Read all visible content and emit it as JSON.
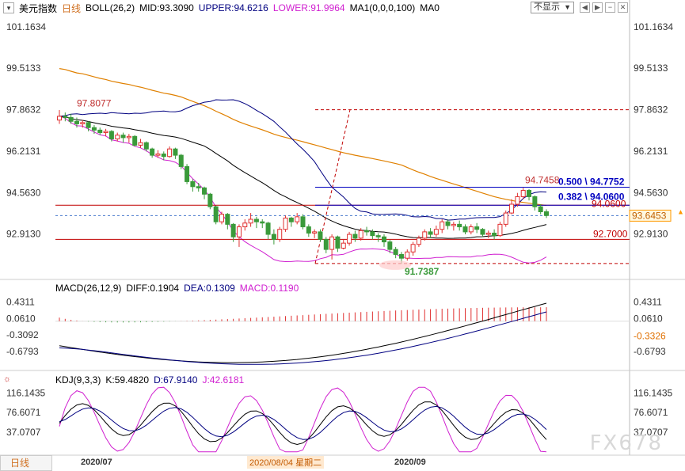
{
  "header": {
    "title": "美元指数",
    "period": "日线",
    "boll_label": "BOLL(26,2)",
    "mid_label": "MID:93.3090",
    "upper_label": "UPPER:94.6216",
    "lower_label": "LOWER:91.9964",
    "ma_label": "MA1(0,0,0,100)",
    "ma0_label": "MA0",
    "display_select": "不显示"
  },
  "macd_header": {
    "name": "MACD(26,12,9)",
    "diff": "DIFF:0.1904",
    "dea": "DEA:0.1309",
    "macd": "MACD:0.1190"
  },
  "kdj_header": {
    "name": "KDJ(9,3,3)",
    "k": "K:59.4820",
    "d": "D:67.9140",
    "j": "J:42.6181"
  },
  "footer": {
    "tab": "日线",
    "dates": [
      "2020/07",
      "2020/08/04 星期二",
      "2020/09"
    ]
  },
  "watermark": "FX678",
  "colors": {
    "up": "#e03030",
    "down": "#3a9a3a",
    "mid": "#000000",
    "upper": "#000080",
    "lower": "#d020d0",
    "ma": "#e08000",
    "fib": "#0000c0",
    "hline": "#c00000",
    "accent": "#ff9900"
  },
  "chart_data": [
    {
      "type": "candlestick",
      "title": "美元指数",
      "y_ticks": [
        "101.1634",
        "99.5133",
        "97.8632",
        "96.2131",
        "94.5630",
        "92.9130"
      ],
      "y_tick_values": [
        101.1634,
        99.5133,
        97.8632,
        96.2131,
        94.563,
        92.913
      ],
      "ylim": [
        91.2,
        101.6
      ],
      "annotations": [
        {
          "label": "97.8077",
          "value": 97.8077
        },
        {
          "label": "91.7387",
          "value": 91.7387
        },
        {
          "label": "94.7458",
          "value": 94.7458
        },
        {
          "label": "0.500 \\ 94.7752",
          "value": 94.7752
        },
        {
          "label": "0.382 \\ 94.0600",
          "value": 94.06
        },
        {
          "label": "94.0600",
          "value": 94.06
        },
        {
          "label": "92.7000",
          "value": 92.7
        },
        {
          "label": "93.6453",
          "value": 93.6453
        }
      ],
      "series": [
        {
          "name": "MID",
          "value": 93.309
        },
        {
          "name": "UPPER",
          "value": 94.6216
        },
        {
          "name": "LOWER",
          "value": 91.9964
        },
        {
          "name": "MA1",
          "value": 0
        }
      ],
      "candles": [
        [
          97.45,
          97.6,
          97.85,
          97.3
        ],
        [
          97.6,
          97.55,
          97.75,
          97.4
        ],
        [
          97.55,
          97.4,
          97.7,
          97.3
        ],
        [
          97.4,
          97.3,
          97.55,
          97.15
        ],
        [
          97.3,
          97.35,
          97.45,
          97.15
        ],
        [
          97.35,
          97.15,
          97.4,
          97.0
        ],
        [
          97.15,
          97.05,
          97.25,
          96.9
        ],
        [
          97.05,
          96.95,
          97.15,
          96.85
        ],
        [
          96.95,
          97.0,
          97.1,
          96.8
        ],
        [
          97.0,
          96.7,
          97.05,
          96.6
        ],
        [
          96.7,
          96.85,
          96.95,
          96.6
        ],
        [
          96.85,
          96.75,
          96.95,
          96.55
        ],
        [
          96.75,
          96.8,
          96.9,
          96.55
        ],
        [
          96.8,
          96.45,
          96.85,
          96.4
        ],
        [
          96.45,
          96.55,
          96.7,
          96.35
        ],
        [
          96.55,
          96.3,
          96.6,
          96.2
        ],
        [
          96.3,
          96.05,
          96.35,
          95.95
        ],
        [
          96.05,
          96.1,
          96.25,
          95.95
        ],
        [
          96.1,
          96.0,
          96.2,
          95.85
        ],
        [
          96.0,
          96.3,
          96.4,
          95.95
        ],
        [
          96.3,
          96.05,
          96.35,
          95.9
        ],
        [
          96.05,
          95.6,
          96.1,
          95.5
        ],
        [
          95.6,
          95.0,
          95.7,
          94.9
        ],
        [
          95.0,
          94.8,
          95.1,
          94.6
        ],
        [
          94.8,
          94.75,
          94.95,
          94.6
        ],
        [
          94.75,
          94.5,
          94.8,
          94.3
        ],
        [
          94.5,
          94.0,
          94.55,
          93.9
        ],
        [
          94.0,
          93.4,
          94.05,
          93.3
        ],
        [
          93.4,
          93.7,
          93.8,
          93.3
        ],
        [
          93.7,
          93.3,
          93.75,
          93.1
        ],
        [
          93.3,
          92.8,
          93.35,
          92.6
        ],
        [
          92.8,
          93.2,
          93.3,
          92.4
        ],
        [
          93.2,
          93.35,
          93.5,
          93.05
        ],
        [
          93.35,
          93.5,
          93.75,
          93.2
        ],
        [
          93.5,
          93.4,
          93.6,
          93.15
        ],
        [
          93.4,
          93.35,
          93.5,
          93.15
        ],
        [
          93.35,
          92.9,
          93.4,
          92.7
        ],
        [
          92.9,
          92.7,
          93.1,
          92.5
        ],
        [
          92.7,
          93.1,
          93.2,
          92.6
        ],
        [
          93.1,
          93.55,
          93.65,
          93.0
        ],
        [
          93.55,
          93.4,
          93.6,
          93.2
        ],
        [
          93.4,
          93.6,
          93.75,
          93.3
        ],
        [
          93.6,
          93.2,
          93.7,
          93.1
        ],
        [
          93.2,
          92.95,
          93.3,
          92.8
        ],
        [
          92.95,
          93.0,
          93.1,
          92.75
        ],
        [
          93.0,
          92.7,
          93.1,
          92.6
        ],
        [
          92.7,
          92.3,
          92.8,
          92.15
        ],
        [
          92.3,
          92.8,
          92.9,
          91.9
        ],
        [
          92.8,
          92.35,
          92.85,
          92.2
        ],
        [
          92.35,
          92.55,
          92.7,
          92.3
        ],
        [
          92.55,
          92.9,
          93.0,
          92.45
        ],
        [
          92.9,
          92.75,
          93.05,
          92.6
        ],
        [
          92.75,
          93.05,
          93.15,
          92.65
        ],
        [
          93.05,
          93.0,
          93.2,
          92.85
        ],
        [
          93.0,
          92.85,
          93.1,
          92.7
        ],
        [
          92.85,
          92.8,
          92.95,
          92.6
        ],
        [
          92.8,
          92.6,
          92.9,
          92.4
        ],
        [
          92.6,
          92.3,
          92.7,
          92.15
        ],
        [
          92.3,
          92.1,
          92.4,
          91.95
        ],
        [
          92.1,
          91.95,
          92.2,
          91.74
        ],
        [
          91.95,
          92.2,
          92.3,
          91.85
        ],
        [
          92.2,
          92.5,
          92.6,
          92.05
        ],
        [
          92.5,
          92.75,
          92.85,
          92.4
        ],
        [
          92.75,
          93.0,
          93.1,
          92.65
        ],
        [
          93.0,
          92.9,
          93.15,
          92.75
        ],
        [
          92.9,
          93.1,
          93.25,
          92.8
        ],
        [
          93.1,
          93.4,
          93.5,
          92.95
        ],
        [
          93.4,
          93.25,
          93.5,
          93.1
        ],
        [
          93.25,
          93.3,
          93.4,
          93.05
        ],
        [
          93.3,
          93.2,
          93.45,
          93.05
        ],
        [
          93.2,
          93.0,
          93.3,
          92.9
        ],
        [
          93.0,
          93.2,
          93.3,
          92.9
        ],
        [
          93.2,
          93.1,
          93.35,
          92.95
        ],
        [
          93.1,
          92.9,
          93.15,
          92.8
        ],
        [
          92.9,
          92.95,
          93.05,
          92.75
        ],
        [
          92.95,
          92.85,
          93.1,
          92.7
        ],
        [
          92.85,
          93.3,
          93.4,
          92.8
        ],
        [
          93.3,
          93.75,
          93.85,
          93.2
        ],
        [
          93.75,
          94.1,
          94.3,
          93.7
        ],
        [
          94.1,
          94.4,
          94.55,
          94.0
        ],
        [
          94.4,
          94.65,
          94.75,
          94.3
        ],
        [
          94.65,
          94.4,
          94.7,
          94.25
        ],
        [
          94.4,
          94.0,
          94.45,
          93.85
        ],
        [
          94.0,
          93.8,
          94.1,
          93.7
        ],
        [
          93.8,
          93.65,
          93.9,
          93.55
        ]
      ]
    },
    {
      "type": "bar",
      "title": "MACD(26,12,9)",
      "y_ticks": [
        "0.4311",
        "0.0610",
        "-0.3092",
        "-0.6793"
      ],
      "y_tick_values": [
        0.4311,
        0.061,
        -0.3092,
        -0.6793
      ],
      "ylim": [
        -1.0,
        0.6
      ],
      "current_marker": "-0.3326",
      "series": [
        {
          "name": "DIFF",
          "value": 0.1904
        },
        {
          "name": "DEA",
          "value": 0.1309
        },
        {
          "name": "MACD",
          "value": 0.119
        }
      ]
    },
    {
      "type": "line",
      "title": "KDJ(9,3,3)",
      "y_ticks": [
        "116.1435",
        "76.6071",
        "37.0707"
      ],
      "y_tick_values": [
        116.1435,
        76.6071,
        37.0707
      ],
      "ylim": [
        -5,
        130
      ],
      "series": [
        {
          "name": "K",
          "value": 59.482
        },
        {
          "name": "D",
          "value": 67.914
        },
        {
          "name": "J",
          "value": 42.6181
        }
      ]
    }
  ]
}
